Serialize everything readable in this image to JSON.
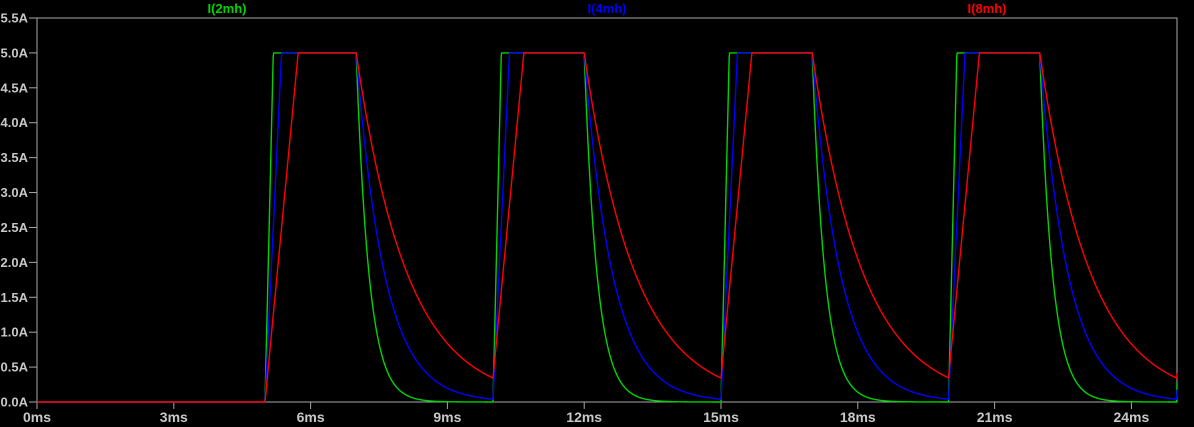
{
  "window": {
    "app": "waveform-viewer",
    "background_color": "#000000"
  },
  "style": {
    "plot_border_color": "#A8A8A8",
    "tick_color": "#A8A8A8",
    "label_color": "#C8C8C8"
  },
  "chart_data": {
    "type": "line",
    "title": "",
    "xunit": "ms",
    "yunit": "A",
    "xlim_ms": [
      0,
      25
    ],
    "ylim_A": [
      0,
      5.5
    ],
    "grid": false,
    "legend_position": "top",
    "x_ticks": [
      {
        "t": 0,
        "label": "0ms"
      },
      {
        "t": 3,
        "label": "3ms"
      },
      {
        "t": 6,
        "label": "6ms"
      },
      {
        "t": 9,
        "label": "9ms"
      },
      {
        "t": 12,
        "label": "12ms"
      },
      {
        "t": 15,
        "label": "15ms"
      },
      {
        "t": 18,
        "label": "18ms"
      },
      {
        "t": 21,
        "label": "21ms"
      },
      {
        "t": 24,
        "label": "24ms"
      }
    ],
    "y_ticks": [
      {
        "v": 5.5,
        "label": "5.5A"
      },
      {
        "v": 5.0,
        "label": "5.0A"
      },
      {
        "v": 4.5,
        "label": "4.5A"
      },
      {
        "v": 4.0,
        "label": "4.0A"
      },
      {
        "v": 3.5,
        "label": "3.5A"
      },
      {
        "v": 3.0,
        "label": "3.0A"
      },
      {
        "v": 2.5,
        "label": "2.5A"
      },
      {
        "v": 2.0,
        "label": "2.0A"
      },
      {
        "v": 1.5,
        "label": "1.5A"
      },
      {
        "v": 1.0,
        "label": "1.0A"
      },
      {
        "v": 0.5,
        "label": "0.5A"
      },
      {
        "v": 0.0,
        "label": "0.0A"
      }
    ],
    "pulse": {
      "first_on_ms": 5,
      "period_ms": 5,
      "on_duration_ms": 2,
      "amplitude_A": 5.0,
      "start_level_A": 0
    },
    "series": [
      {
        "name": "I(2mh)",
        "color": "#00D400",
        "inductance_mH": 2,
        "ramp_A_per_ms": 27.5,
        "decay_tau_ms": 0.28,
        "peak_A": 5.0,
        "key_points": "0A until 5ms; ramps to 5A by ~5.2ms; flat 5A to 7ms; exp decay to ~0A by ~8.3ms; repeats each 5ms"
      },
      {
        "name": "I(4mh)",
        "color": "#0000FF",
        "inductance_mH": 4,
        "ramp_A_per_ms": 13.75,
        "decay_tau_ms": 0.62,
        "peak_A": 5.0,
        "key_points": "0A until 5ms; ramps to 5A by ~5.4ms; flat 5A to 7ms; exp decay to ~0.05A by 10ms; repeats each 5ms"
      },
      {
        "name": "I(8mh)",
        "color": "#FF0000",
        "inductance_mH": 8,
        "ramp_A_per_ms": 6.875,
        "decay_tau_ms": 1.12,
        "peak_A": 5.0,
        "key_points": "0A until 5ms; ramps to 5A by ~5.7ms; flat 5A to 7ms; exp decay to ~0.3A by 10ms; repeats each 5ms"
      }
    ]
  }
}
